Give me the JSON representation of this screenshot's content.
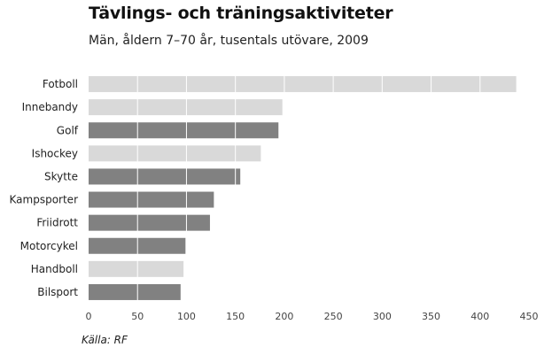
{
  "header": {
    "title": "Tävlings- och träningsaktiviteter",
    "subtitle": "Män, åldern 7–70 år, tusentals utövare, 2009"
  },
  "footer": {
    "source": "Källa: RF"
  },
  "colors": {
    "dark_bar": "#818181",
    "light_bar": "#d9d9d9",
    "gridline": "#ffffff"
  },
  "chart_data": {
    "type": "bar",
    "orientation": "horizontal",
    "title": "Tävlings- och träningsaktiviteter",
    "subtitle": "Män, åldern 7–70 år, tusentals utövare, 2009",
    "categories": [
      "Fotboll",
      "Innebandy",
      "Golf",
      "Ishockey",
      "Skytte",
      "Kampsporter",
      "Friidrott",
      "Motorcykel",
      "Handboll",
      "Bilsport"
    ],
    "values": [
      437,
      198,
      194,
      176,
      155,
      128,
      124,
      99,
      97,
      94
    ],
    "bar_shades": [
      "light",
      "light",
      "dark",
      "light",
      "dark",
      "dark",
      "dark",
      "dark",
      "light",
      "dark"
    ],
    "xlim": [
      0,
      450
    ],
    "xticks": [
      0,
      50,
      100,
      150,
      200,
      250,
      300,
      350,
      400,
      450
    ],
    "xlabel": "",
    "ylabel": "",
    "grid": true,
    "legend": "none"
  }
}
